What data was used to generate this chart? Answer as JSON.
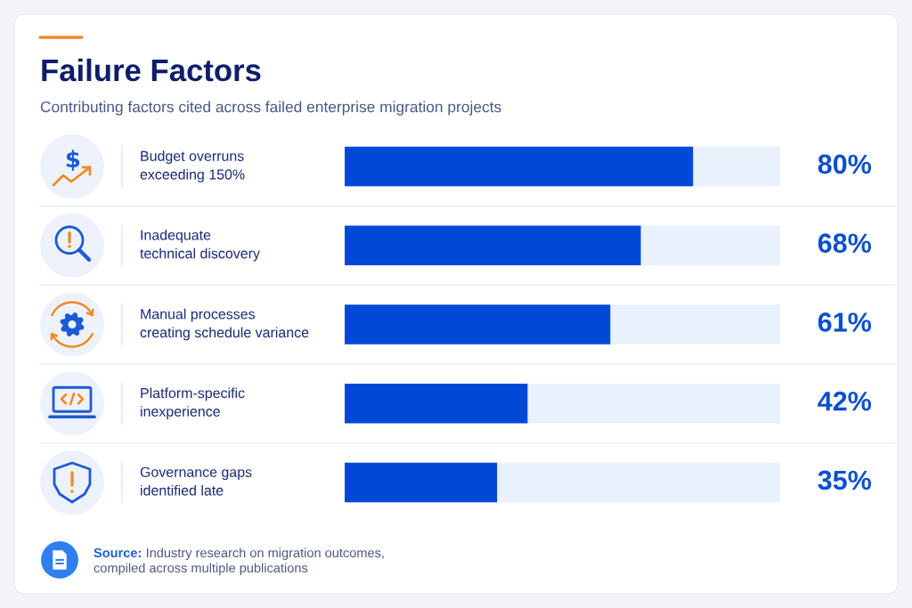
{
  "chart_data": {
    "type": "bar",
    "orientation": "horizontal",
    "title": "Failure Factors",
    "subtitle": "Contributing factors cited across failed enterprise migration projects",
    "categories": [
      "Budget overruns\nexceeding 150%",
      "Inadequate\ntechnical discovery",
      "Manual processes\ncreating schedule variance",
      "Platform-specific\ninexperience",
      "Governance gaps\nidentified late"
    ],
    "values": [
      80,
      68,
      61,
      42,
      35
    ],
    "value_labels": [
      "80%",
      "68%",
      "61%",
      "42%",
      "35%"
    ],
    "color": "#0049d7",
    "xlim": [
      0,
      100
    ],
    "tick_labels": "y",
    "annotations": [
      "Source:",
      "Industry research on migration outcomes,",
      "compiled across multiple publications"
    ]
  }
}
